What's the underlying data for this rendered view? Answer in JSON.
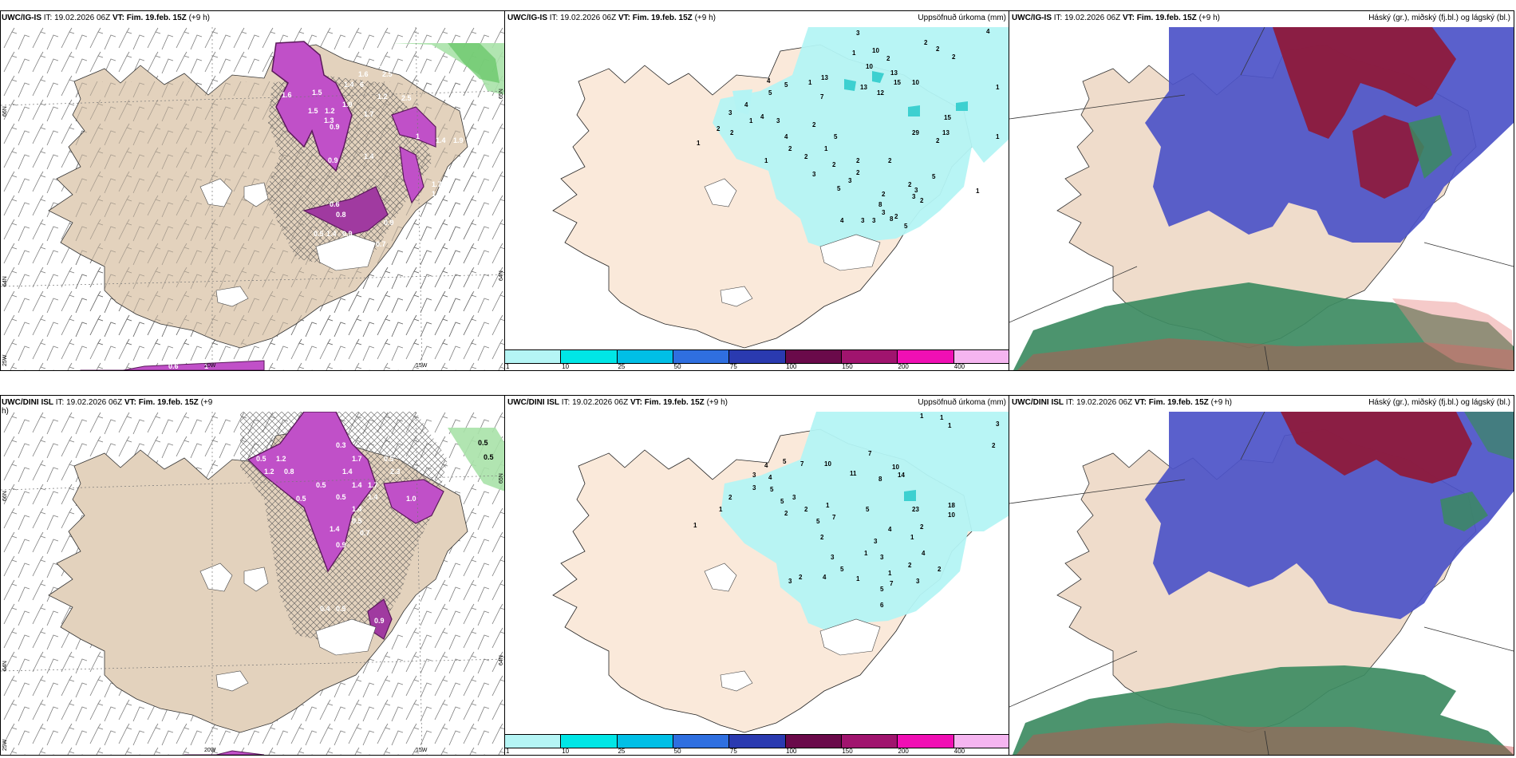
{
  "panels": {
    "p1": {
      "model": "UWC/IG-IS",
      "it_label": "IT:",
      "it_value": "19.02.2026 06Z",
      "vt_label": "VT:",
      "vt_value": "Fim. 19.feb. 15Z",
      "lead": "(+9 h)",
      "right_title": "",
      "axis": {
        "lat_66": "66N",
        "lat_64": "64N",
        "lat_65e": "65N",
        "lat_64e": "64N",
        "lon_25": "25W",
        "lon_20": "20W",
        "lon_15": "15W"
      },
      "values": [
        "2.1",
        "1.1",
        "1.6",
        "2.5",
        "1.4",
        "6",
        "1.5",
        "1.6",
        "1.2",
        "1.9",
        "2.5",
        "1.2",
        "1.5",
        "1.3",
        "1.7",
        "0.9",
        "1",
        "1.4",
        "1.9",
        "1.4",
        "0.9",
        "1.7",
        "1.6",
        "0.6",
        "0.8",
        "0.5",
        "1.4",
        "0.9",
        "0.7",
        "0.9",
        "0.6",
        "1"
      ]
    },
    "p2": {
      "model": "UWC/IG-IS",
      "it_label": "IT:",
      "it_value": "19.02.2026 06Z",
      "vt_label": "VT:",
      "vt_value": "Fim. 19.feb. 15Z",
      "lead": "(+9 h)",
      "right_title": "Uppsöfnuð úrkoma (mm)",
      "values": [
        "3",
        "2",
        "2",
        "4",
        "2",
        "1",
        "10",
        "2",
        "10",
        "13",
        "15",
        "10",
        "12",
        "13",
        "1",
        "13",
        "15",
        "4",
        "1",
        "5",
        "7",
        "5",
        "3",
        "1",
        "4",
        "4",
        "2",
        "1",
        "2",
        "3",
        "2",
        "4",
        "5",
        "2",
        "2",
        "1",
        "1",
        "2",
        "2",
        "3",
        "5",
        "8",
        "3",
        "2",
        "29",
        "13",
        "1",
        "3",
        "2",
        "5",
        "2",
        "2",
        "3",
        "2",
        "2",
        "1",
        "2",
        "3",
        "8",
        "3",
        "3",
        "5",
        "4"
      ],
      "colorbar": [
        "1",
        "10",
        "25",
        "50",
        "75",
        "100",
        "150",
        "200",
        "400"
      ]
    },
    "p3": {
      "model": "UWC/IG-IS",
      "it_label": "IT:",
      "it_value": "19.02.2026 06Z",
      "vt_label": "VT:",
      "vt_value": "Fim. 19.feb. 15Z",
      "lead": "(+9 h)",
      "right_title": "Háský (gr.), miðský (fj.bl.) og lágský (bl.)"
    },
    "p4": {
      "model": "UWC/DINI ISL",
      "it_label": "IT:",
      "it_value": "19.02.2026 06Z",
      "vt_label": "VT:",
      "vt_value": "Fim. 19.feb. 15Z",
      "lead": "(+9 h)",
      "right_title": "",
      "axis": {
        "lat_66": "66N",
        "lat_64": "64N",
        "lat_65e": "65N",
        "lat_64e": "64N",
        "lon_25": "25W",
        "lon_20": "20W",
        "lon_15": "15W"
      },
      "values": [
        "0.5",
        "0.5",
        "0.3",
        "0.5",
        "1.2",
        "1.7",
        "0.5",
        "1.2",
        "0.8",
        "1.4",
        "2.3",
        "0.5",
        "1.4",
        "1.7",
        "0.5",
        "1.4",
        "1.4",
        "1.0",
        "0.5",
        "0.5",
        "1.4",
        "0.7",
        "0.9",
        "0.4",
        "0.5",
        "0.9"
      ]
    },
    "p5": {
      "model": "UWC/DINI ISL",
      "it_label": "IT:",
      "it_value": "19.02.2026 06Z",
      "vt_label": "VT:",
      "vt_value": "Fim. 19.feb. 15Z",
      "lead": "(+9 h)",
      "right_title": "Uppsöfnuð úrkoma (mm)",
      "values": [
        "1",
        "1",
        "1",
        "3",
        "2",
        "4",
        "5",
        "7",
        "10",
        "3",
        "4",
        "7",
        "11",
        "8",
        "10",
        "14",
        "3",
        "5",
        "3",
        "1",
        "2",
        "5",
        "1",
        "2",
        "2",
        "7",
        "5",
        "5",
        "1",
        "23",
        "18",
        "10",
        "2",
        "1",
        "4",
        "2",
        "3",
        "3",
        "1",
        "3",
        "4",
        "2",
        "5",
        "4",
        "1",
        "2",
        "3",
        "1",
        "5",
        "7",
        "3",
        "2",
        "6"
      ],
      "colorbar": [
        "1",
        "10",
        "25",
        "50",
        "75",
        "100",
        "150",
        "200",
        "400"
      ]
    },
    "p6": {
      "model": "UWC/DINI ISL",
      "it_label": "IT:",
      "it_value": "19.02.2026 06Z",
      "vt_label": "VT:",
      "vt_value": "Fim. 19.feb. 15Z",
      "lead": "(+9 h)",
      "right_title": "Háský (gr.), miðský (fj.bl.) og lágský (bl.)"
    }
  },
  "colors": {
    "land": "#e5d4bf",
    "land_light": "#f7e9d8",
    "precip_cyan": "#b5f5f5",
    "snow_purple": "#c84fd0",
    "snow_dark": "#6a2a6a",
    "green": "#a6e0a6",
    "cloud_high": "#3e8a62",
    "cloud_mid": "#8b1a3a",
    "cloud_low": "#4b4fc7",
    "colorbar": [
      "#b5f5f5",
      "#00e6e6",
      "#00bfe6",
      "#2f6fe0",
      "#2a3ab0",
      "#6a0a4a",
      "#a0146e",
      "#f00fb4",
      "#f5b5f0"
    ]
  }
}
